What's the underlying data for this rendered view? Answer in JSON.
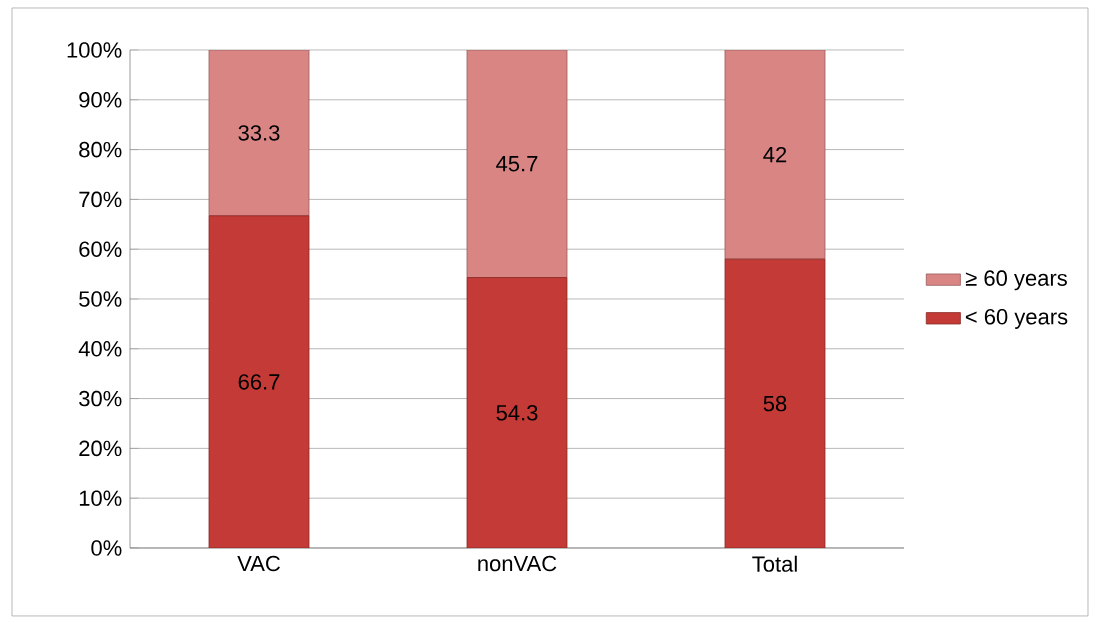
{
  "chart_data": {
    "type": "bar",
    "stacked": true,
    "categories": [
      "VAC",
      "nonVAC",
      "Total"
    ],
    "series": [
      {
        "name": "< 60 years",
        "color": "#c43a36",
        "values": [
          66.7,
          54.3,
          58
        ],
        "value_labels": [
          "66.7",
          "54.3",
          "58"
        ]
      },
      {
        "name": "≥ 60 years",
        "color": "#d98584",
        "values": [
          33.3,
          45.7,
          42
        ],
        "value_labels": [
          "33.3",
          "45.7",
          "42"
        ]
      }
    ],
    "ylim": [
      0,
      100
    ],
    "yticks": [
      {
        "value": 0,
        "label": "0%"
      },
      {
        "value": 10,
        "label": "10%"
      },
      {
        "value": 20,
        "label": "20%"
      },
      {
        "value": 30,
        "label": "30%"
      },
      {
        "value": 40,
        "label": "40%"
      },
      {
        "value": 50,
        "label": "50%"
      },
      {
        "value": 60,
        "label": "60%"
      },
      {
        "value": 70,
        "label": "70%"
      },
      {
        "value": 80,
        "label": "80%"
      },
      {
        "value": 90,
        "label": "90%"
      },
      {
        "value": 100,
        "label": "100%"
      }
    ],
    "grid": "y",
    "legend": "right"
  }
}
